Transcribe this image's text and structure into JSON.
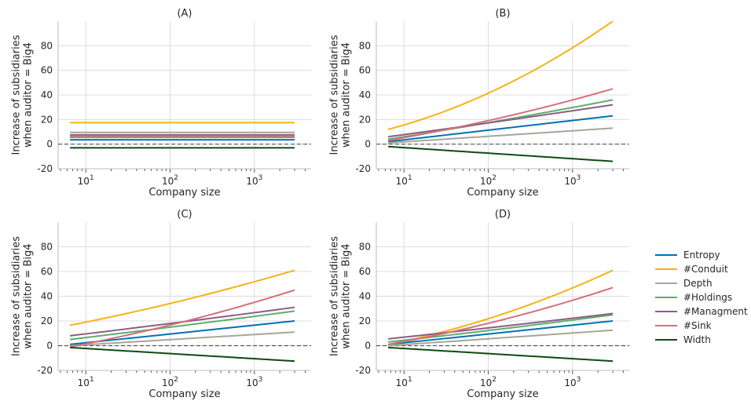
{
  "legend": {
    "entries": [
      {
        "name": "Entropy",
        "color": "#0072B2"
      },
      {
        "name": "#Conduit",
        "color": "#F5B316"
      },
      {
        "name": "Depth",
        "color": "#A8A59A"
      },
      {
        "name": "#Holdings",
        "color": "#5BAE6B"
      },
      {
        "name": "#Managment",
        "color": "#8B5E83"
      },
      {
        "name": "#Sink",
        "color": "#D4707A"
      },
      {
        "name": "Width",
        "color": "#0F4A12"
      }
    ]
  },
  "chart_data": [
    {
      "type": "line",
      "title": "(A)",
      "xlabel": "Company size",
      "ylabel": "Increase of subsidiaries when auditor = Big4",
      "xscale": "log",
      "xlim": [
        4.7,
        4700
      ],
      "ylim": [
        -20,
        100
      ],
      "yticks": [
        -20,
        0,
        20,
        40,
        60,
        80
      ],
      "xticks": [
        10,
        100,
        1000
      ],
      "xtick_labels": [
        "10^1",
        "10^2",
        "10^3"
      ],
      "x": [
        6.5,
        3000
      ],
      "reference_line": 0,
      "grid": true,
      "series": [
        {
          "name": "Entropy",
          "values": [
            3.5,
            3.5
          ]
        },
        {
          "name": "#Conduit",
          "values": [
            17.5,
            17.5
          ]
        },
        {
          "name": "Depth",
          "values": [
            9.5,
            9.5
          ]
        },
        {
          "name": "#Holdings",
          "values": [
            5.5,
            5.5
          ]
        },
        {
          "name": "#Managment",
          "values": [
            7.5,
            7.5
          ]
        },
        {
          "name": "#Sink",
          "values": [
            6.5,
            6.5
          ]
        },
        {
          "name": "Width",
          "values": [
            -3,
            -3
          ]
        }
      ]
    },
    {
      "type": "line",
      "title": "(B)",
      "xlabel": "Company size",
      "ylabel": "Increase of subsidiaries when auditor = Big4",
      "xscale": "log",
      "xlim": [
        4.7,
        4700
      ],
      "ylim": [
        -20,
        100
      ],
      "yticks": [
        -20,
        0,
        20,
        40,
        60,
        80
      ],
      "xticks": [
        10,
        100,
        1000
      ],
      "xtick_labels": [
        "10^1",
        "10^2",
        "10^3"
      ],
      "x": [
        6.5,
        3000
      ],
      "reference_line": 0,
      "grid": true,
      "series": [
        {
          "name": "Entropy",
          "values": [
            2,
            23
          ],
          "curve": 0
        },
        {
          "name": "#Conduit",
          "values": [
            12,
            100
          ],
          "curve": 0.45
        },
        {
          "name": "Depth",
          "values": [
            1,
            13
          ],
          "curve": 0
        },
        {
          "name": "#Holdings",
          "values": [
            4,
            36
          ],
          "curve": 0.1
        },
        {
          "name": "#Managment",
          "values": [
            6,
            32
          ],
          "curve": 0.05
        },
        {
          "name": "#Sink",
          "values": [
            3,
            45
          ],
          "curve": 0.25
        },
        {
          "name": "Width",
          "values": [
            -2,
            -14
          ],
          "curve": 0
        }
      ]
    },
    {
      "type": "line",
      "title": "(C)",
      "xlabel": "Company size",
      "ylabel": "Increase of subsidiaries when auditor = Big4",
      "xscale": "log",
      "xlim": [
        4.7,
        4700
      ],
      "ylim": [
        -20,
        100
      ],
      "yticks": [
        -20,
        0,
        20,
        40,
        60,
        80
      ],
      "xticks": [
        10,
        100,
        1000
      ],
      "xtick_labels": [
        "10^1",
        "10^2",
        "10^3"
      ],
      "x": [
        6.5,
        3000
      ],
      "reference_line": 0,
      "grid": true,
      "series": [
        {
          "name": "Entropy",
          "values": [
            1,
            20
          ],
          "curve": 0
        },
        {
          "name": "#Conduit",
          "values": [
            16.5,
            61
          ],
          "curve": 0.2
        },
        {
          "name": "Depth",
          "values": [
            0,
            11
          ],
          "curve": 0
        },
        {
          "name": "#Holdings",
          "values": [
            5,
            28
          ],
          "curve": 0.05
        },
        {
          "name": "#Managment",
          "values": [
            8,
            31
          ],
          "curve": 0.05
        },
        {
          "name": "#Sink",
          "values": [
            -1,
            45
          ],
          "curve": 0.25
        },
        {
          "name": "Width",
          "values": [
            -1.5,
            -12.5
          ],
          "curve": 0
        }
      ]
    },
    {
      "type": "line",
      "title": "(D)",
      "xlabel": "Company size",
      "ylabel": "Increase of subsidiaries when auditor = Big4",
      "xscale": "log",
      "xlim": [
        4.7,
        4700
      ],
      "ylim": [
        -20,
        100
      ],
      "yticks": [
        -20,
        0,
        20,
        40,
        60,
        80
      ],
      "xticks": [
        10,
        100,
        1000
      ],
      "xtick_labels": [
        "10^1",
        "10^2",
        "10^3"
      ],
      "x": [
        6.5,
        3000
      ],
      "reference_line": 0,
      "grid": true,
      "series": [
        {
          "name": "Entropy",
          "values": [
            1,
            20
          ],
          "curve": 0
        },
        {
          "name": "#Conduit",
          "values": [
            1,
            61
          ],
          "curve": 0.4
        },
        {
          "name": "Depth",
          "values": [
            0,
            12.5
          ],
          "curve": 0
        },
        {
          "name": "#Holdings",
          "values": [
            3,
            25
          ],
          "curve": 0.1
        },
        {
          "name": "#Managment",
          "values": [
            5.5,
            26
          ],
          "curve": 0.05
        },
        {
          "name": "#Sink",
          "values": [
            1,
            47
          ],
          "curve": 0.3
        },
        {
          "name": "Width",
          "values": [
            -1.5,
            -12.5
          ],
          "curve": 0
        }
      ]
    }
  ]
}
